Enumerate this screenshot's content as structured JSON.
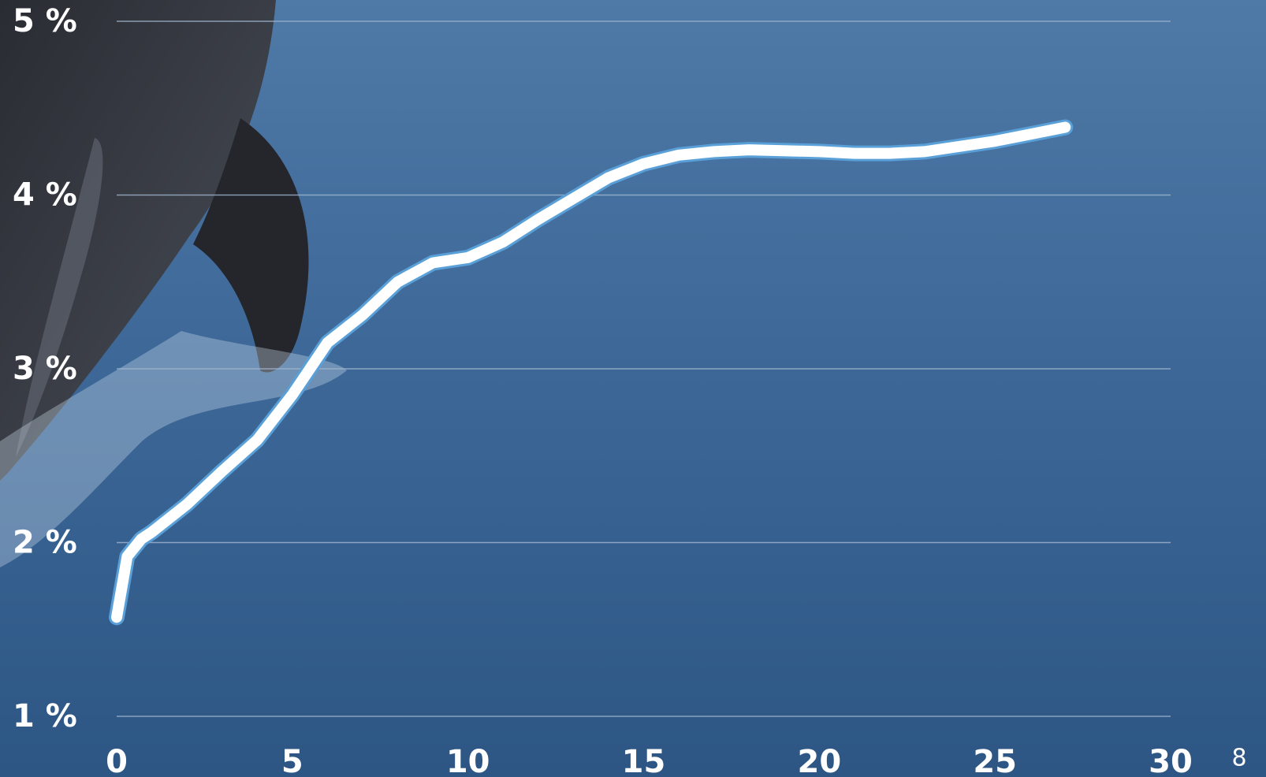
{
  "chart_data": {
    "type": "line",
    "x": [
      0,
      0.3,
      0.7,
      1,
      2,
      3,
      4,
      5,
      6,
      7,
      8,
      9,
      10,
      11,
      12,
      13,
      14,
      15,
      16,
      17,
      18,
      20,
      21,
      22,
      23,
      24,
      25,
      26,
      27
    ],
    "series": [
      {
        "color": "#ffffff",
        "outline": "#5aa0d8",
        "values": [
          1.57,
          1.92,
          2.02,
          2.06,
          2.22,
          2.41,
          2.59,
          2.85,
          3.15,
          3.31,
          3.5,
          3.61,
          3.64,
          3.73,
          3.86,
          3.98,
          4.1,
          4.18,
          4.23,
          4.25,
          4.26,
          4.25,
          4.24,
          4.24,
          4.25,
          4.28,
          4.31,
          4.35,
          4.39
        ]
      }
    ],
    "xlim": [
      0,
      30
    ],
    "xticks": [
      0,
      5,
      10,
      15,
      20,
      25,
      30
    ],
    "ylim": [
      1,
      5
    ],
    "yticks": [
      {
        "value": 1,
        "label": "1 %"
      },
      {
        "value": 2,
        "label": "2 %"
      },
      {
        "value": 3,
        "label": "3 %"
      },
      {
        "value": 4,
        "label": "4 %"
      },
      {
        "value": 5,
        "label": "5 %"
      }
    ],
    "grid": true
  },
  "page_number": "8"
}
